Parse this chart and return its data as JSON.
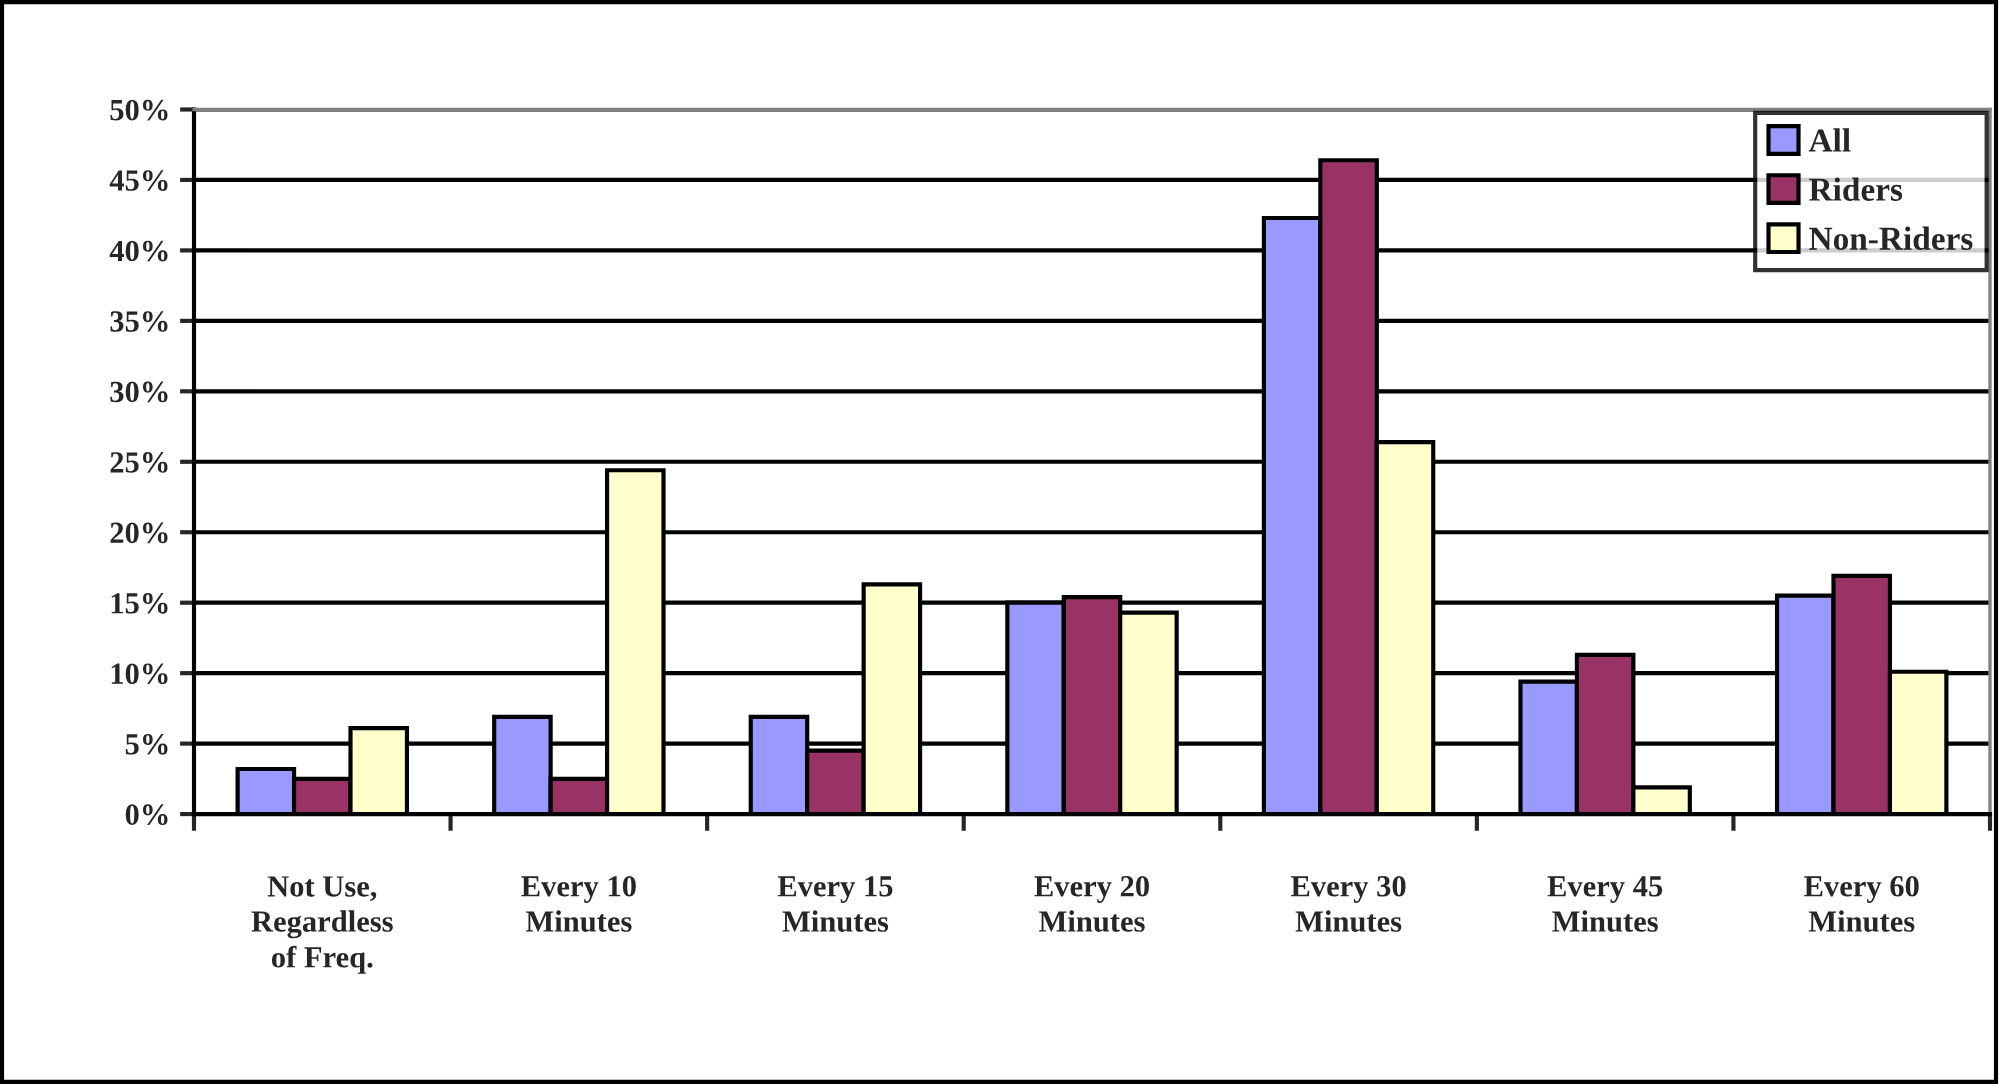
{
  "chart_data": {
    "type": "bar",
    "categories": [
      "Not Use,\nRegardless\nof Freq.",
      "Every 10\nMinutes",
      "Every 15\nMinutes",
      "Every 20\nMinutes",
      "Every 30\nMinutes",
      "Every 45\nMinutes",
      "Every 60\nMinutes"
    ],
    "series": [
      {
        "name": "All",
        "color": "#9999ff",
        "values": [
          3.2,
          6.9,
          6.9,
          15.0,
          42.3,
          9.4,
          15.5
        ]
      },
      {
        "name": "Riders",
        "color": "#993366",
        "values": [
          2.5,
          2.5,
          4.5,
          15.4,
          46.4,
          11.3,
          16.9
        ]
      },
      {
        "name": "Non-Riders",
        "color": "#ffffcc",
        "values": [
          6.1,
          24.4,
          16.3,
          14.3,
          26.4,
          1.9,
          10.1
        ]
      }
    ],
    "ylim": [
      0,
      50
    ],
    "yticks": [
      {
        "value": 0,
        "label": "0%"
      },
      {
        "value": 5,
        "label": "5%"
      },
      {
        "value": 10,
        "label": "10%"
      },
      {
        "value": 15,
        "label": "15%"
      },
      {
        "value": 20,
        "label": "20%"
      },
      {
        "value": 25,
        "label": "25%"
      },
      {
        "value": 30,
        "label": "30%"
      },
      {
        "value": 35,
        "label": "35%"
      },
      {
        "value": 40,
        "label": "40%"
      },
      {
        "value": 45,
        "label": "45%"
      },
      {
        "value": 50,
        "label": "50%"
      }
    ],
    "grid": "y",
    "legend": "top right"
  }
}
